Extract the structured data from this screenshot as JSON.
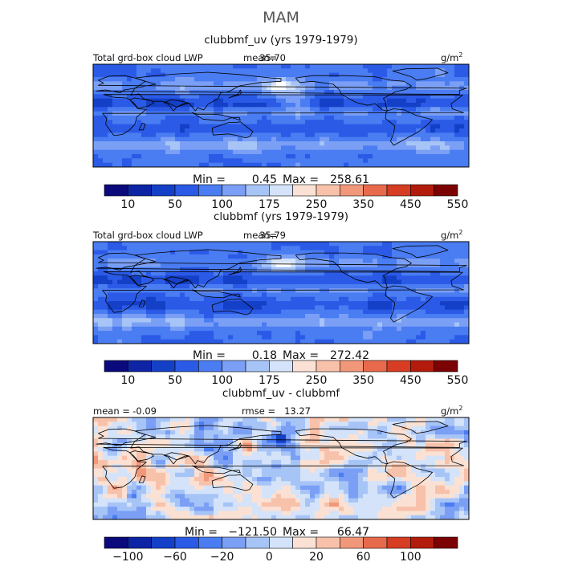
{
  "page": {
    "season": "MAM"
  },
  "chart_data": [
    {
      "type": "heatmap",
      "title": "clubbmf_uv (yrs 1979-1979)",
      "variable": "Total grd-box cloud LWP",
      "units": "g/m",
      "units_exp": "2",
      "mean_label": "mean=",
      "mean": "35.70",
      "min_label": "Min =",
      "min": "0.45",
      "max_label": "Max =",
      "max": "258.61",
      "colorbar": {
        "colors": [
          "#0a0a7c",
          "#0d24a4",
          "#1440c8",
          "#2a5ae6",
          "#4a7cf2",
          "#7a9ff5",
          "#a7c4f7",
          "#d4e3f9",
          "#fbe1d3",
          "#f7c1aa",
          "#f2987a",
          "#e86a4c",
          "#d63d22",
          "#b31c0c",
          "#7c0303"
        ],
        "ticks": [
          "10",
          "50",
          "100",
          "175",
          "250",
          "350",
          "450",
          "550"
        ]
      },
      "field": "positive"
    },
    {
      "type": "heatmap",
      "title": "clubbmf (yrs 1979-1979)",
      "variable": "Total grd-box cloud LWP",
      "units": "g/m",
      "units_exp": "2",
      "mean_label": "mean=",
      "mean": "35.79",
      "min_label": "Min =",
      "min": "0.18",
      "max_label": "Max =",
      "max": "272.42",
      "colorbar": {
        "colors": [
          "#0a0a7c",
          "#0d24a4",
          "#1440c8",
          "#2a5ae6",
          "#4a7cf2",
          "#7a9ff5",
          "#a7c4f7",
          "#d4e3f9",
          "#fbe1d3",
          "#f7c1aa",
          "#f2987a",
          "#e86a4c",
          "#d63d22",
          "#b31c0c",
          "#7c0303"
        ],
        "ticks": [
          "10",
          "50",
          "100",
          "175",
          "250",
          "350",
          "450",
          "550"
        ]
      },
      "field": "positive"
    },
    {
      "type": "heatmap",
      "title": "clubbmf_uv - clubbmf",
      "mean_label": "mean =",
      "mean": "-0.09",
      "rmse_label": "rmse =",
      "rmse": "13.27",
      "units": "g/m",
      "units_exp": "2",
      "min_label": "Min =",
      "min": "−121.50",
      "max_label": "Max =",
      "max": "66.47",
      "colorbar": {
        "colors": [
          "#0a0a7c",
          "#0d24a4",
          "#1440c8",
          "#2a5ae6",
          "#4a7cf2",
          "#7a9ff5",
          "#a7c4f7",
          "#d4e3f9",
          "#fbe1d3",
          "#f7c1aa",
          "#f2987a",
          "#e86a4c",
          "#d63d22",
          "#b31c0c",
          "#7c0303"
        ],
        "ticks": [
          "−100",
          "−60",
          "−20",
          "0",
          "20",
          "60",
          "100"
        ]
      },
      "field": "difference"
    }
  ]
}
